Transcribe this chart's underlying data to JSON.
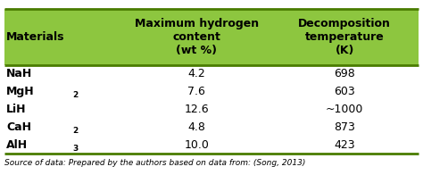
{
  "header_bg": "#8DC63F",
  "header_text_color": "#000000",
  "row_bg": "#FFFFFF",
  "border_color": "#4A7C00",
  "col1_header": "Materials",
  "col2_header": "Maximum hydrogen\ncontent\n(wt %)",
  "col3_header": "Decomposition\ntemperature\n(K)",
  "rows": [
    {
      "mat": "NaH",
      "mat_sub": null,
      "wt": "4.2",
      "temp": "698"
    },
    {
      "mat": "MgH",
      "mat_sub": "2",
      "wt": "7.6",
      "temp": "603"
    },
    {
      "mat": "LiH",
      "mat_sub": null,
      "wt": "12.6",
      "temp": "~1000"
    },
    {
      "mat": "CaH",
      "mat_sub": "2",
      "wt": "4.8",
      "temp": "873"
    },
    {
      "mat": "AlH",
      "mat_sub": "3",
      "wt": "10.0",
      "temp": "423"
    }
  ],
  "footnote": "Source of data: Prepared by the authors based on data from: (Song, 2013)",
  "header_fontsize": 9,
  "data_fontsize": 9,
  "footnote_fontsize": 6.5
}
